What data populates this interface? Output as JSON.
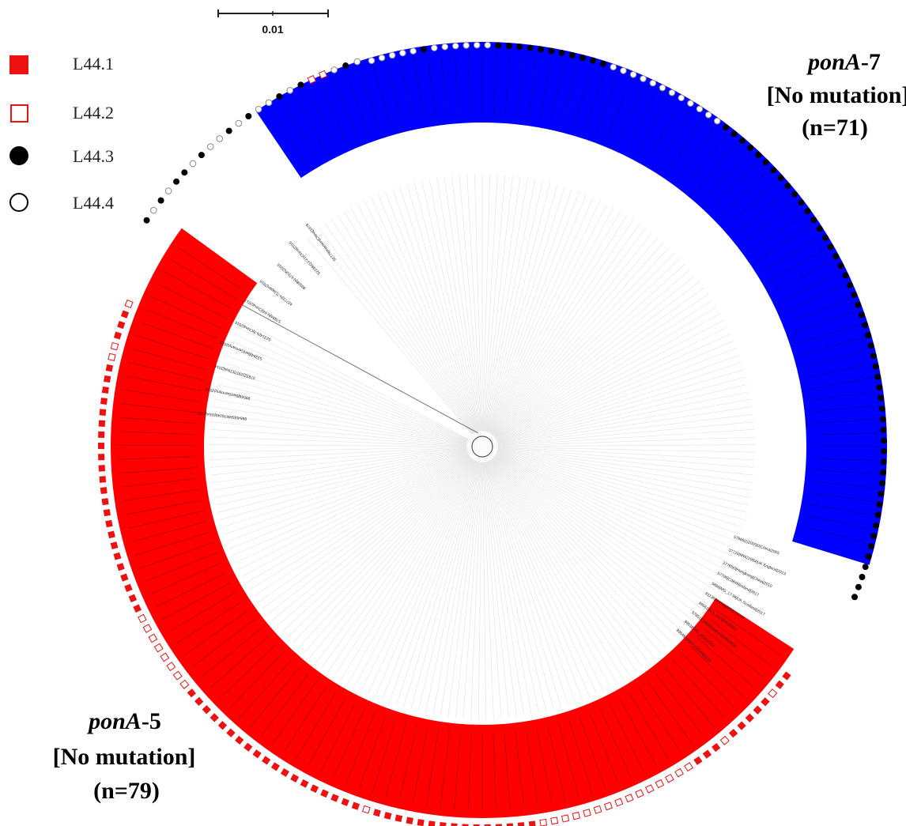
{
  "scale_bar": {
    "label": "0.01"
  },
  "legend": [
    {
      "id": "L44.1",
      "label": "L44.1",
      "marker": "filled-square",
      "color": "#ee1111"
    },
    {
      "id": "L44.2",
      "label": "L44.2",
      "marker": "open-square",
      "color": "#ee1111"
    },
    {
      "id": "L44.3",
      "label": "L44.3",
      "marker": "filled-circle",
      "color": "#000000"
    },
    {
      "id": "L44.4",
      "label": "L44.4",
      "marker": "open-circle",
      "color": "#000000"
    }
  ],
  "clades": [
    {
      "id": "ponA-7",
      "title_italic": "ponA",
      "title_suffix": "-7",
      "subtitle": "[No mutation]",
      "count": "(n=71)",
      "color": "#0000ff"
    },
    {
      "id": "ponA-5",
      "title_italic": "ponA",
      "title_suffix": "-5",
      "subtitle": "[No mutation]",
      "count": "(n=79)",
      "color": "#ff0000"
    }
  ],
  "outside_labels": [
    "57866|1|2005|0|China|2005",
    "37720|MW22964|UK England|2013",
    "37765|0|Hongkong|China|2010",
    "57796|C0849|Ireland|2017",
    "5866|MG_17-96|UK Scotland|2017",
    "61136|Norway|WHO|2016",
    "89562|N-S_1110|UK|2014",
    "57851|C0603|Netherlands|2016",
    "89538|MG_3|SA|2014",
    "89548|SRR710|CHN|2014",
    "52779|Xiamen|China|1978",
    "52238|QJ-21|China|2016",
    "89508|N-67|UK|2016",
    "43772|N-7|Japan|2016",
    "57894|N-64|China|2017",
    "52314|N-3|China|2016",
    "53394|Ber|Germany|2011",
    "57832|2007|China|2014",
    "89568|Ber|Germany|2014",
    "89540|SRR76240|USA|2011"
  ],
  "markers": {
    "pona7_top": "ooooo@oooooo@@@@@@@@@@@oooooooooooo@@@@@@@@@@@@@@@@@@@@@@@@@@@@@@@@@@@@@@@@@@@@@@@@@@",
    "gap_right": "@@@@@@@@@@@",
    "pona5": "■■□■■■■■□■■■□□□□□□□□□□□□□□□■■■■■■■■■■■■■■■□■■■■■■■■■■■■■■■■■■■□□□□□□□□■■■■■■■■■■■■■■■■■■■■■■■□□■■■□",
    "left_ticks": "@o@o@@o@oo@o@oo@o@□□o@o"
  }
}
